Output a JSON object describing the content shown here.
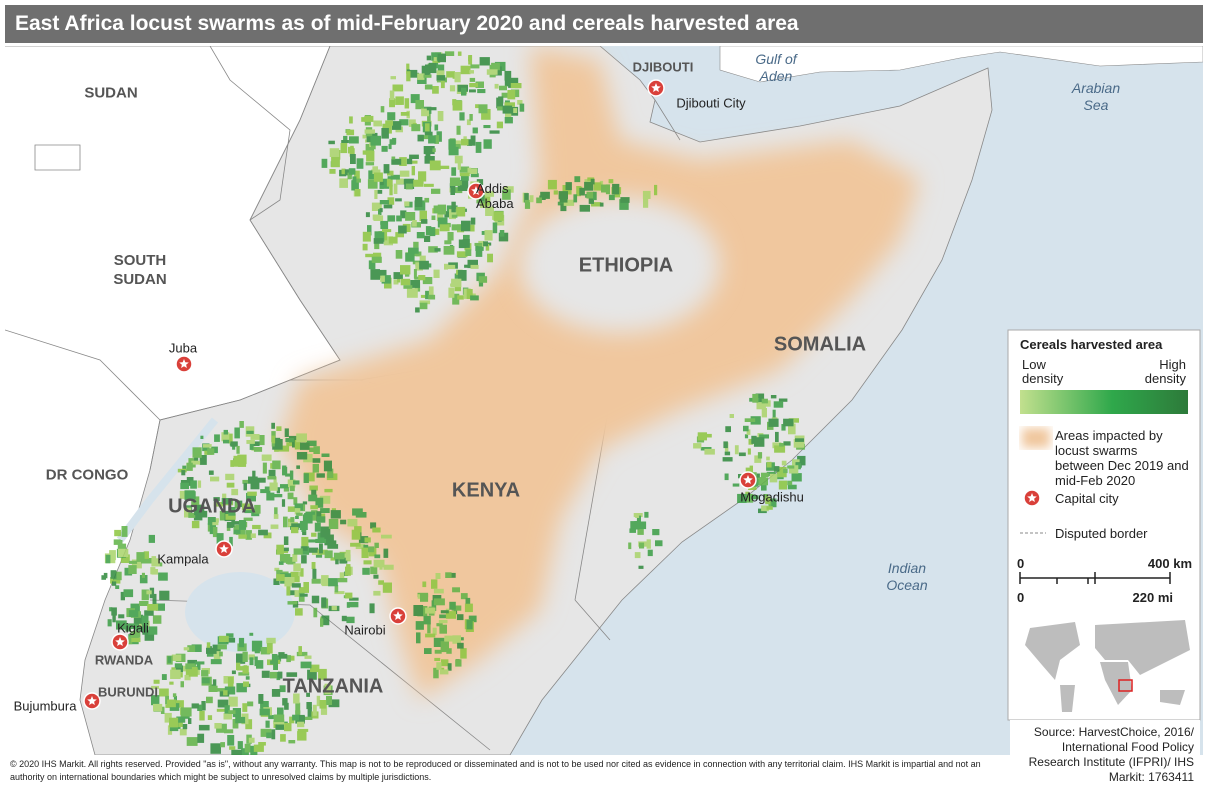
{
  "title": "East Africa locust swarms as of mid-February 2020 and cereals harvested area",
  "countries": [
    "SUDAN",
    "SOUTH SUDAN",
    "DR CONGO",
    "UGANDA",
    "ETHIOPIA",
    "SOMALIA",
    "KENYA",
    "TANZANIA",
    "RWANDA",
    "BURUNDI",
    "DJIBOUTI"
  ],
  "cities": [
    "Djibouti City",
    "Addis Ababa",
    "Juba",
    "Kampala",
    "Nairobi",
    "Mogadishu",
    "Kigali",
    "Bujumbura"
  ],
  "water": [
    "Gulf of Aden",
    "Arabian Sea",
    "Indian Ocean"
  ],
  "legend": {
    "title": "Cereals harvested area",
    "low": "Low density",
    "high": "High density",
    "locust": "Areas impacted by locust swarms between Dec 2019 and mid-Feb 2020",
    "capital": "Capital city",
    "disputed": "Disputed border"
  },
  "scale": {
    "km": [
      "0",
      "400 km"
    ],
    "mi": [
      "0",
      "220 mi"
    ]
  },
  "source": "Source: HarvestChoice, 2016/ International Food Policy Research Institute (IFPRI)/ IHS Markit: 1763411",
  "copyright": "© 2020 IHS Markit. All rights reserved. Provided \"as is\", without any warranty. This map is not to be reproduced or disseminated and is not to be used nor cited as evidence in connection with any territorial claim. IHS Markit is impartial and not an authority on international boundaries which might be subject to unresolved claims by multiple jurisdictions."
}
